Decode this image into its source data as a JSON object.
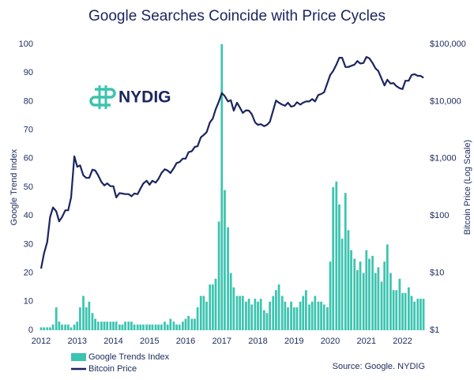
{
  "chart_data": {
    "type": "combo",
    "title": "Google Searches Coincide with Price Cycles",
    "logo_text": "NYDIG",
    "source": "Source: Google. NYDIG",
    "y_label": "Google Trend Index",
    "y2_label": "Bitcoin Price (Log Scale)",
    "x": [
      2012,
      2012.08,
      2012.17,
      2012.25,
      2012.33,
      2012.42,
      2012.5,
      2012.58,
      2012.67,
      2012.75,
      2012.83,
      2012.92,
      2013,
      2013.08,
      2013.17,
      2013.25,
      2013.33,
      2013.42,
      2013.5,
      2013.58,
      2013.67,
      2013.75,
      2013.83,
      2013.92,
      2014,
      2014.08,
      2014.17,
      2014.25,
      2014.33,
      2014.42,
      2014.5,
      2014.58,
      2014.67,
      2014.75,
      2014.83,
      2014.92,
      2015,
      2015.08,
      2015.17,
      2015.25,
      2015.33,
      2015.42,
      2015.5,
      2015.58,
      2015.67,
      2015.75,
      2015.83,
      2015.92,
      2016,
      2016.08,
      2016.17,
      2016.25,
      2016.33,
      2016.42,
      2016.5,
      2016.58,
      2016.67,
      2016.75,
      2016.83,
      2016.92,
      2017,
      2017.08,
      2017.17,
      2017.25,
      2017.33,
      2017.42,
      2017.5,
      2017.58,
      2017.67,
      2017.75,
      2017.83,
      2017.92,
      2018,
      2018.08,
      2018.17,
      2018.25,
      2018.33,
      2018.42,
      2018.5,
      2018.58,
      2018.67,
      2018.75,
      2018.83,
      2018.92,
      2019,
      2019.08,
      2019.17,
      2019.25,
      2019.33,
      2019.42,
      2019.5,
      2019.58,
      2019.67,
      2019.75,
      2019.83,
      2019.92,
      2020,
      2020.08,
      2020.17,
      2020.25,
      2020.33,
      2020.42,
      2020.5,
      2020.58,
      2020.67,
      2020.75,
      2020.83,
      2020.92,
      2021,
      2021.08,
      2021.17,
      2021.25,
      2021.33,
      2021.42,
      2021.5,
      2021.58,
      2021.67,
      2021.75,
      2021.83,
      2021.92,
      2022,
      2022.08,
      2022.17,
      2022.25,
      2022.33,
      2022.42,
      2022.5,
      2022.58
    ],
    "xlim": [
      2012,
      2022.6
    ],
    "xticks": [
      2012,
      2013,
      2014,
      2015,
      2016,
      2017,
      2018,
      2019,
      2020,
      2021,
      2022
    ],
    "ylim": [
      0,
      100
    ],
    "yticks": [
      0,
      10,
      20,
      30,
      40,
      50,
      60,
      70,
      80,
      90,
      100
    ],
    "y2lim": [
      1,
      100000
    ],
    "y2_scale": "log",
    "y2ticks": [
      {
        "value": 1,
        "label": "$1"
      },
      {
        "value": 10,
        "label": "$10"
      },
      {
        "value": 100,
        "label": "$100"
      },
      {
        "value": 1000,
        "label": "$1,000"
      },
      {
        "value": 10000,
        "label": "$10,000"
      },
      {
        "value": 100000,
        "label": "$100,000"
      }
    ],
    "series": [
      {
        "name": "Google Trends Index",
        "type": "bar",
        "color": "#3cc4b0",
        "values": [
          1,
          1,
          1,
          1,
          2,
          8,
          3,
          2,
          2,
          2,
          1,
          2,
          3,
          8,
          12,
          8,
          10,
          6,
          4,
          3,
          3,
          3,
          3,
          3,
          3,
          3,
          2,
          2,
          3,
          3,
          3,
          2,
          2,
          2,
          2,
          2,
          2,
          2,
          2,
          2,
          2,
          3,
          2,
          4,
          3,
          2,
          2,
          3,
          4,
          5,
          4,
          4,
          8,
          12,
          12,
          10,
          16,
          16,
          18,
          38,
          100,
          49,
          36,
          20,
          15,
          12,
          12,
          12,
          10,
          11,
          9,
          11,
          10,
          11,
          7,
          6,
          10,
          12,
          14,
          16,
          12,
          10,
          8,
          10,
          8,
          8,
          10,
          12,
          14,
          9,
          10,
          12,
          10,
          10,
          9,
          8,
          24,
          50,
          52,
          44,
          32,
          48,
          35,
          28,
          25,
          21,
          24,
          20,
          28,
          25,
          26,
          20,
          22,
          17,
          24,
          30,
          20,
          14,
          14,
          18,
          13,
          13,
          15,
          12,
          10,
          11,
          11,
          11
        ]
      },
      {
        "name": "Bitcoin Price",
        "type": "line",
        "color": "#1b2560",
        "axis": "y2",
        "values": [
          12,
          22,
          35,
          95,
          140,
          120,
          80,
          95,
          125,
          125,
          210,
          1100,
          720,
          760,
          510,
          460,
          460,
          640,
          620,
          510,
          390,
          340,
          370,
          330,
          330,
          210,
          250,
          245,
          240,
          240,
          220,
          245,
          240,
          300,
          370,
          410,
          350,
          410,
          380,
          445,
          560,
          650,
          620,
          560,
          680,
          840,
          870,
          1000,
          1000,
          1300,
          1350,
          1600,
          1650,
          2350,
          2600,
          2900,
          4300,
          5000,
          7300,
          10000,
          14000,
          12500,
          10000,
          10500,
          6900,
          9500,
          7800,
          6300,
          7000,
          6900,
          6000,
          4300,
          3900,
          4000,
          3700,
          3900,
          4400,
          6900,
          10400,
          9500,
          8800,
          8400,
          9500,
          8100,
          8400,
          9700,
          8800,
          9500,
          10000,
          10000,
          11000,
          10000,
          13000,
          13500,
          14500,
          21000,
          29000,
          34000,
          44000,
          58000,
          58000,
          40000,
          40000,
          42000,
          44000,
          51000,
          46000,
          47000,
          60000,
          57000,
          47000,
          38000,
          34000,
          25000,
          19000,
          24000,
          20500,
          21000,
          18500,
          17000,
          16500,
          23000,
          23000,
          29000,
          30000,
          28000,
          28000,
          26000
        ]
      }
    ]
  }
}
